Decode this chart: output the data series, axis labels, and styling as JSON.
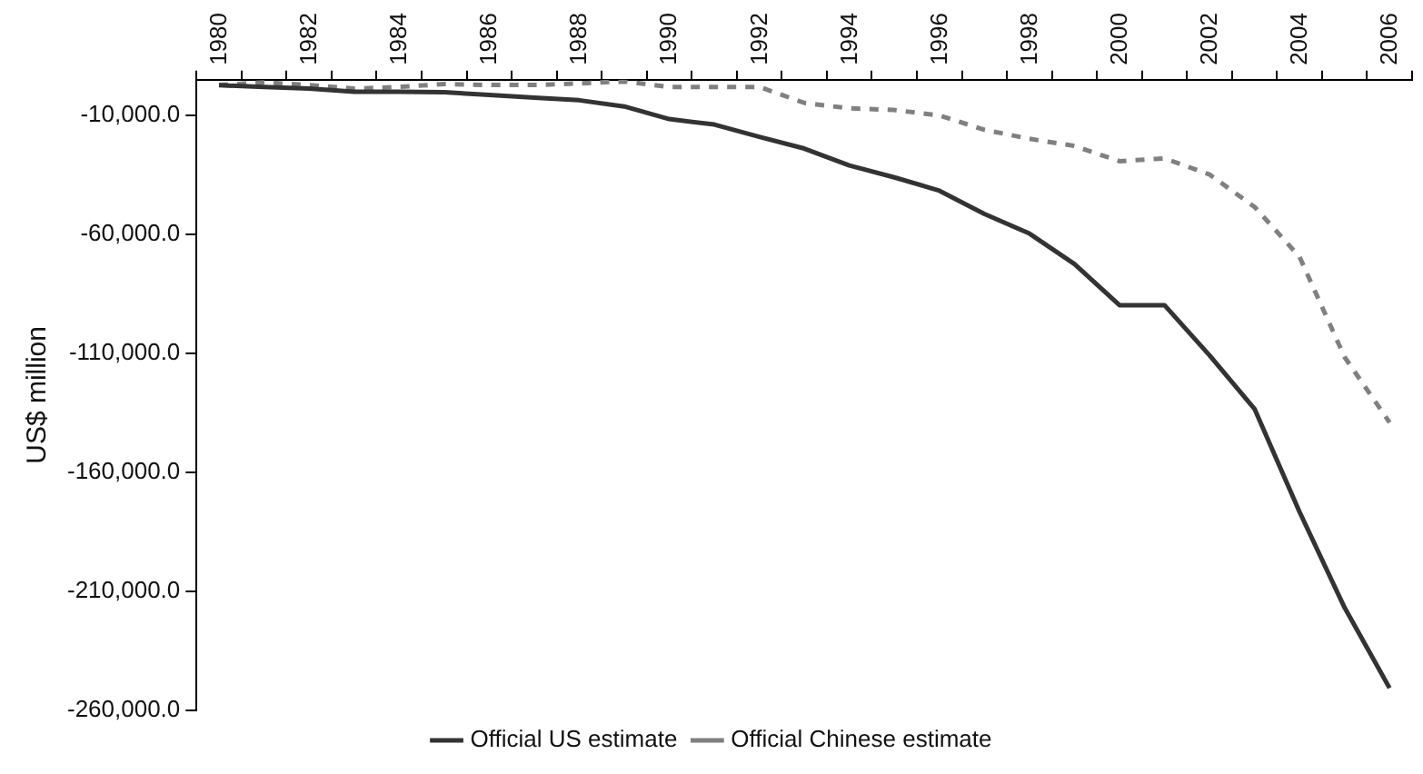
{
  "chart_data": {
    "type": "line",
    "ylabel": "US$ million",
    "categories": [
      "1980",
      null,
      "1982",
      null,
      "1984",
      null,
      "1986",
      null,
      "1988",
      null,
      "1990",
      null,
      "1992",
      null,
      "1994",
      null,
      "1996",
      null,
      "1998",
      null,
      "2000",
      null,
      "2002",
      null,
      "2004",
      null,
      "2006"
    ],
    "series": [
      {
        "name": "Official US estimate",
        "color": "#333333",
        "line_style": "solid",
        "values": [
          2700,
          2000,
          1300,
          0,
          0,
          -200,
          -1400,
          -2500,
          -3600,
          -6200,
          -11500,
          -13800,
          -19000,
          -23900,
          -31000,
          -36000,
          -41600,
          -51400,
          -59600,
          -72400,
          -89700,
          -89700,
          -110800,
          -133300,
          -176600,
          -216800,
          -250600
        ]
      },
      {
        "name": "Official Chinese estimate",
        "color": "#808080",
        "line_style": "dashed",
        "values": [
          2800,
          3900,
          2800,
          1300,
          2000,
          3200,
          2800,
          2800,
          3500,
          4300,
          2000,
          2000,
          2000,
          -4700,
          -7000,
          -7700,
          -10000,
          -16000,
          -19800,
          -22800,
          -29200,
          -28000,
          -34800,
          -48400,
          -69400,
          -111500,
          -139000
        ]
      }
    ],
    "ylim": [
      -260000,
      5000
    ],
    "yticks": [
      {
        "value": -10000,
        "label": "-10,000.0"
      },
      {
        "value": -60000,
        "label": "-60,000.0"
      },
      {
        "value": -110000,
        "label": "-110,000.0"
      },
      {
        "value": -160000,
        "label": "-160,000.0"
      },
      {
        "value": -210000,
        "label": "-210,000.0"
      },
      {
        "value": -260000,
        "label": "-260,000.0"
      }
    ],
    "grid": false,
    "legend": "bottom",
    "marker": "none"
  }
}
